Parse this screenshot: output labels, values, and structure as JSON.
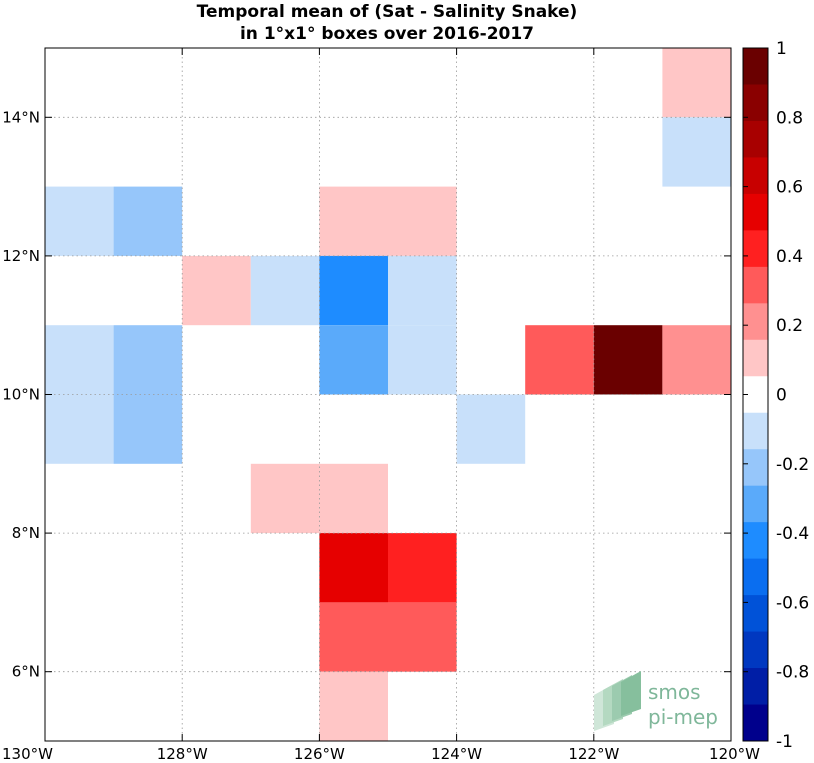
{
  "chart_data": {
    "type": "heatmap",
    "title": "Temporal mean of (Sat - Salinity Snake)",
    "subtitle": "in 1°x1° boxes over 2016-2017",
    "xlabel": "",
    "ylabel": "",
    "xlim": [
      -130,
      -120
    ],
    "ylim": [
      5,
      15
    ],
    "grid": true,
    "x_ticks": [
      {
        "value": -130,
        "label": "130°W"
      },
      {
        "value": -128,
        "label": "128°W"
      },
      {
        "value": -126,
        "label": "126°W"
      },
      {
        "value": -124,
        "label": "124°W"
      },
      {
        "value": -122,
        "label": "122°W"
      },
      {
        "value": -120,
        "label": "120°W"
      }
    ],
    "y_ticks": [
      {
        "value": 6,
        "label": "6°N"
      },
      {
        "value": 8,
        "label": "8°N"
      },
      {
        "value": 10,
        "label": "10°N"
      },
      {
        "value": 12,
        "label": "12°N"
      },
      {
        "value": 14,
        "label": "14°N"
      }
    ],
    "colorbar": {
      "range": [
        -1,
        1
      ],
      "labels": [
        "1",
        "0.8",
        "0.6",
        "0.4",
        "0.2",
        "0",
        "-0.2",
        "-0.4",
        "-0.6",
        "-0.8",
        "-1"
      ],
      "colors_top_to_bottom": [
        "#6a0000",
        "#8a0000",
        "#a80000",
        "#c80000",
        "#e60000",
        "#ff2020",
        "#ff5a5a",
        "#ff9090",
        "#ffc6c6",
        "#ffffff",
        "#c8e0fa",
        "#96c6fa",
        "#5aaafa",
        "#1e8cff",
        "#0a6ef0",
        "#0052d8",
        "#0038c0",
        "#001ea6",
        "#00008c"
      ]
    },
    "cells": [
      {
        "lon": -121,
        "lat": 14,
        "value": 0.15
      },
      {
        "lon": -121,
        "lat": 13,
        "value": -0.15
      },
      {
        "lon": -130,
        "lat": 12,
        "value": -0.15
      },
      {
        "lon": -129,
        "lat": 12,
        "value": -0.25
      },
      {
        "lon": -126,
        "lat": 12,
        "value": 0.15
      },
      {
        "lon": -125,
        "lat": 12,
        "value": 0.15
      },
      {
        "lon": -128,
        "lat": 11,
        "value": 0.15
      },
      {
        "lon": -127,
        "lat": 11,
        "value": -0.15
      },
      {
        "lon": -126,
        "lat": 11,
        "value": -0.45
      },
      {
        "lon": -125,
        "lat": 11,
        "value": -0.15
      },
      {
        "lon": -130,
        "lat": 10,
        "value": -0.15
      },
      {
        "lon": -129,
        "lat": 10,
        "value": -0.25
      },
      {
        "lon": -126,
        "lat": 10,
        "value": -0.35
      },
      {
        "lon": -125,
        "lat": 10,
        "value": -0.15
      },
      {
        "lon": -123,
        "lat": 10,
        "value": 0.35
      },
      {
        "lon": -122,
        "lat": 10,
        "value": 0.95
      },
      {
        "lon": -121,
        "lat": 10,
        "value": 0.25
      },
      {
        "lon": -130,
        "lat": 9,
        "value": -0.15
      },
      {
        "lon": -129,
        "lat": 9,
        "value": -0.25
      },
      {
        "lon": -124,
        "lat": 9,
        "value": -0.15
      },
      {
        "lon": -127,
        "lat": 8,
        "value": 0.15
      },
      {
        "lon": -126,
        "lat": 8,
        "value": 0.15
      },
      {
        "lon": -126,
        "lat": 7,
        "value": 0.55
      },
      {
        "lon": -125,
        "lat": 7,
        "value": 0.45
      },
      {
        "lon": -126,
        "lat": 6,
        "value": 0.35
      },
      {
        "lon": -125,
        "lat": 6,
        "value": 0.35
      },
      {
        "lon": -126,
        "lat": 5,
        "value": 0.15
      }
    ]
  },
  "logo": {
    "line1": "smos",
    "line2": "pi-mep"
  }
}
